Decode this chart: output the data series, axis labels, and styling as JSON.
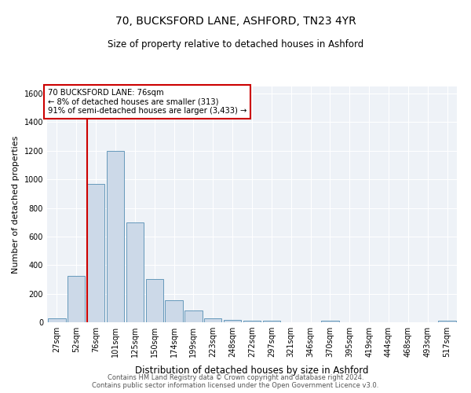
{
  "title": "70, BUCKSFORD LANE, ASHFORD, TN23 4YR",
  "subtitle": "Size of property relative to detached houses in Ashford",
  "xlabel": "Distribution of detached houses by size in Ashford",
  "ylabel": "Number of detached properties",
  "bin_labels": [
    "27sqm",
    "52sqm",
    "76sqm",
    "101sqm",
    "125sqm",
    "150sqm",
    "174sqm",
    "199sqm",
    "223sqm",
    "248sqm",
    "272sqm",
    "297sqm",
    "321sqm",
    "346sqm",
    "370sqm",
    "395sqm",
    "419sqm",
    "444sqm",
    "468sqm",
    "493sqm",
    "517sqm"
  ],
  "bar_values": [
    25,
    325,
    970,
    1200,
    700,
    305,
    155,
    80,
    25,
    15,
    10,
    10,
    0,
    0,
    10,
    0,
    0,
    0,
    0,
    0,
    10
  ],
  "bar_color": "#ccd9e8",
  "bar_edge_color": "#6699bb",
  "vline_color": "#cc0000",
  "annotation_text": "70 BUCKSFORD LANE: 76sqm\n← 8% of detached houses are smaller (313)\n91% of semi-detached houses are larger (3,433) →",
  "annotation_box_color": "#ffffff",
  "annotation_box_edge": "#cc0000",
  "ylim": [
    0,
    1650
  ],
  "yticks": [
    0,
    200,
    400,
    600,
    800,
    1000,
    1200,
    1400,
    1600
  ],
  "footer1": "Contains HM Land Registry data © Crown copyright and database right 2024.",
  "footer2": "Contains public sector information licensed under the Open Government Licence v3.0.",
  "bg_color": "#ffffff",
  "plot_bg_color": "#eef2f7",
  "grid_color": "#ffffff",
  "title_fontsize": 10,
  "subtitle_fontsize": 8.5,
  "ylabel_fontsize": 8,
  "xlabel_fontsize": 8.5,
  "tick_fontsize": 7,
  "footer_fontsize": 6,
  "vline_bar_index": 2,
  "bar_width": 0.9
}
